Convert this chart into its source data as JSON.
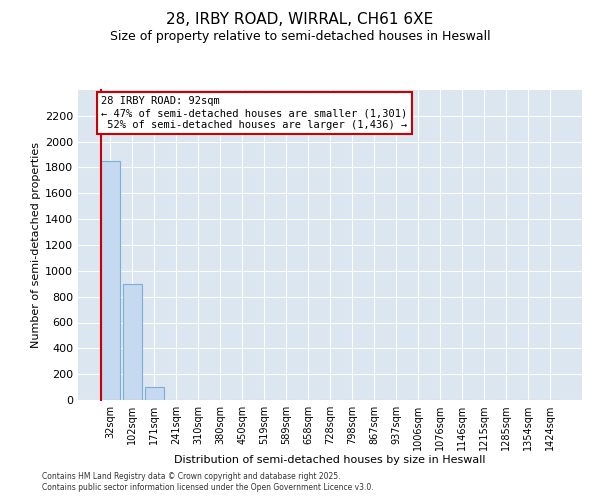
{
  "title1": "28, IRBY ROAD, WIRRAL, CH61 6XE",
  "title2": "Size of property relative to semi-detached houses in Heswall",
  "xlabel": "Distribution of semi-detached houses by size in Heswall",
  "ylabel": "Number of semi-detached properties",
  "categories": [
    "32sqm",
    "102sqm",
    "171sqm",
    "241sqm",
    "310sqm",
    "380sqm",
    "450sqm",
    "519sqm",
    "589sqm",
    "658sqm",
    "728sqm",
    "798sqm",
    "867sqm",
    "937sqm",
    "1006sqm",
    "1076sqm",
    "1146sqm",
    "1215sqm",
    "1285sqm",
    "1354sqm",
    "1424sqm"
  ],
  "values": [
    1850,
    900,
    100,
    0,
    0,
    0,
    0,
    0,
    0,
    0,
    0,
    0,
    0,
    0,
    0,
    0,
    0,
    0,
    0,
    0,
    0
  ],
  "bar_color": "#c5d9f1",
  "bar_edge_color": "#7bafd4",
  "background_color": "#dce6f1",
  "grid_color": "#ffffff",
  "property_line_color": "#cc0000",
  "annotation_box_edge_color": "#cc0000",
  "property_label": "28 IRBY ROAD: 92sqm",
  "pct_smaller": 47,
  "count_smaller": 1301,
  "pct_larger": 52,
  "count_larger": 1436,
  "ylim": [
    0,
    2400
  ],
  "yticks": [
    0,
    200,
    400,
    600,
    800,
    1000,
    1200,
    1400,
    1600,
    1800,
    2000,
    2200
  ],
  "property_line_x": -0.42,
  "footnote1": "Contains HM Land Registry data © Crown copyright and database right 2025.",
  "footnote2": "Contains public sector information licensed under the Open Government Licence v3.0."
}
